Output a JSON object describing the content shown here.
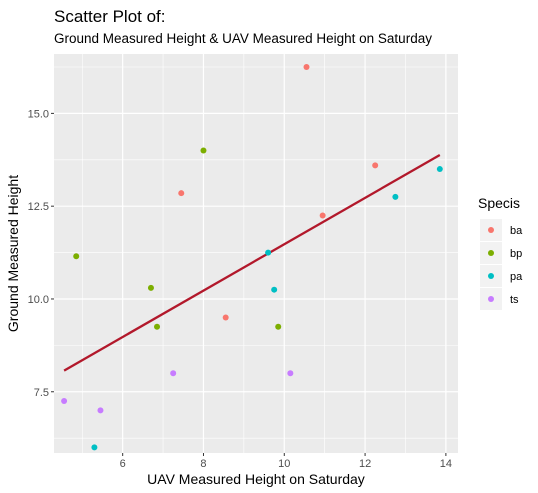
{
  "chart_data": {
    "type": "scatter",
    "title": "Scatter Plot of:",
    "subtitle": "Ground Measured Height & UAV Measured Height on Saturday",
    "xlabel": "UAV Measured Height on Saturday",
    "ylabel": "Ground Measured Height",
    "xlim": [
      4.3,
      14.3
    ],
    "ylim": [
      5.85,
      16.6
    ],
    "x_ticks": [
      6,
      8,
      10,
      12,
      14
    ],
    "x_tick_labels": [
      "6",
      "8",
      "10",
      "12",
      "14"
    ],
    "y_ticks": [
      7.5,
      10.0,
      12.5,
      15.0
    ],
    "y_tick_labels": [
      "7.5",
      "10.0",
      "12.5",
      "15.0"
    ],
    "grid": true,
    "legend": {
      "title": "Specis",
      "placement": "right",
      "entries": [
        {
          "name": "ba",
          "color": "#F8766D"
        },
        {
          "name": "bp",
          "color": "#7CAE00"
        },
        {
          "name": "pa",
          "color": "#00BFC4"
        },
        {
          "name": "ts",
          "color": "#C77CFF"
        }
      ]
    },
    "series": [
      {
        "name": "ba",
        "color": "#F8766D",
        "points": [
          {
            "x": 7.45,
            "y": 12.85
          },
          {
            "x": 8.55,
            "y": 9.5
          },
          {
            "x": 10.55,
            "y": 16.25
          },
          {
            "x": 10.95,
            "y": 12.25
          },
          {
            "x": 12.25,
            "y": 13.6
          }
        ]
      },
      {
        "name": "bp",
        "color": "#7CAE00",
        "points": [
          {
            "x": 4.85,
            "y": 11.15
          },
          {
            "x": 6.7,
            "y": 10.3
          },
          {
            "x": 6.85,
            "y": 9.25
          },
          {
            "x": 8.0,
            "y": 14.0
          },
          {
            "x": 9.85,
            "y": 9.25
          }
        ]
      },
      {
        "name": "pa",
        "color": "#00BFC4",
        "points": [
          {
            "x": 5.3,
            "y": 6.0
          },
          {
            "x": 9.6,
            "y": 11.25
          },
          {
            "x": 9.75,
            "y": 10.25
          },
          {
            "x": 12.75,
            "y": 12.75
          },
          {
            "x": 13.85,
            "y": 13.5
          }
        ]
      },
      {
        "name": "ts",
        "color": "#C77CFF",
        "points": [
          {
            "x": 4.55,
            "y": 7.25
          },
          {
            "x": 5.45,
            "y": 7.0
          },
          {
            "x": 7.25,
            "y": 8.0
          },
          {
            "x": 10.15,
            "y": 8.0
          }
        ]
      }
    ],
    "trend_line": {
      "color": "#B2182B",
      "x": [
        4.55,
        13.85
      ],
      "y": [
        8.07,
        13.88
      ]
    }
  }
}
